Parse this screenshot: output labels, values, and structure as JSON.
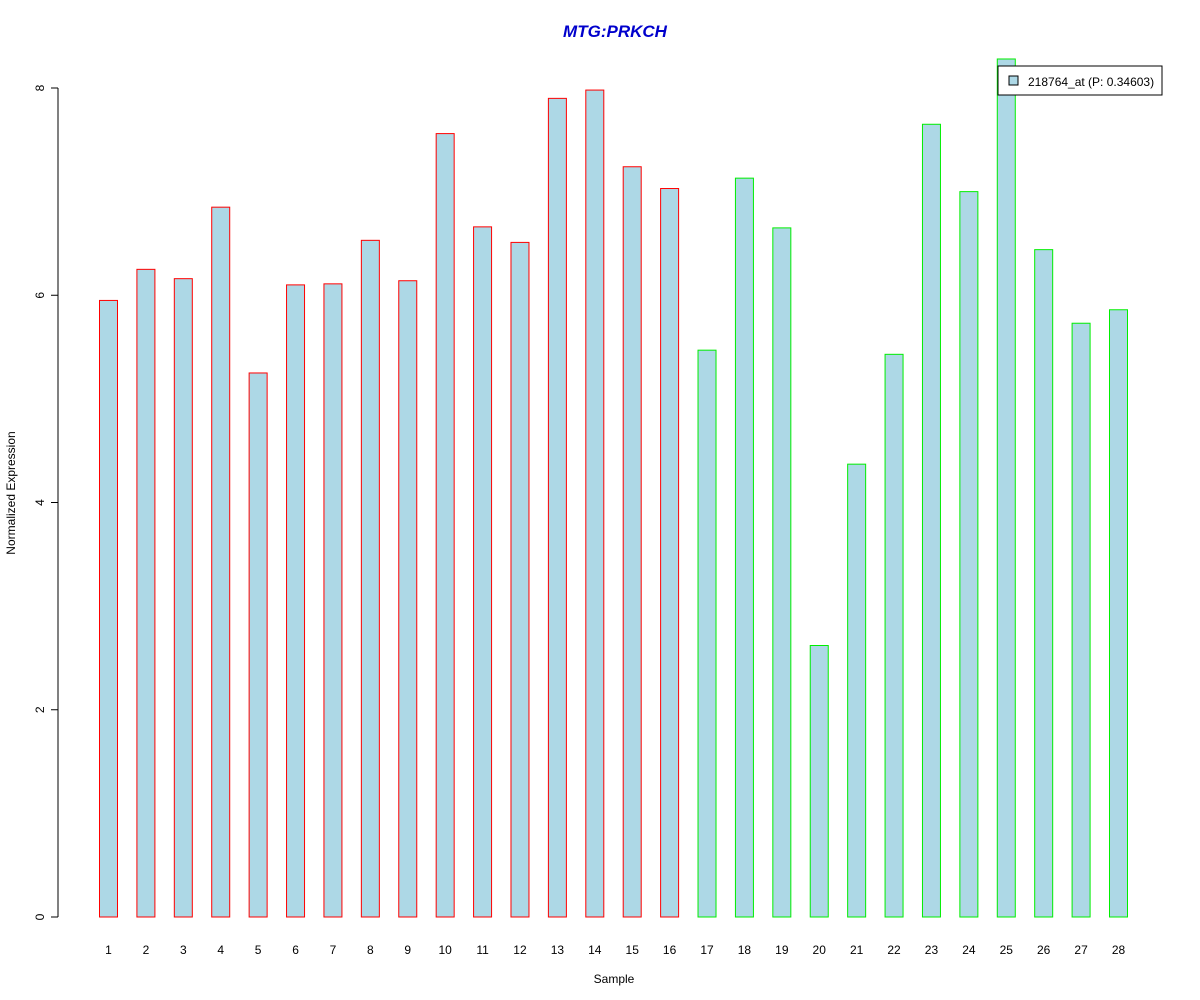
{
  "chart_data": {
    "type": "bar",
    "title": "MTG:PRKCH",
    "xlabel": "Sample",
    "ylabel": "Normalized Expression",
    "categories": [
      "1",
      "2",
      "3",
      "4",
      "5",
      "6",
      "7",
      "8",
      "9",
      "10",
      "11",
      "12",
      "13",
      "14",
      "15",
      "16",
      "17",
      "18",
      "19",
      "20",
      "21",
      "22",
      "23",
      "24",
      "25",
      "26",
      "27",
      "28"
    ],
    "series": [
      {
        "name": "218764_at (P: 0.34603)",
        "values": [
          5.95,
          6.25,
          6.16,
          6.85,
          5.25,
          6.1,
          6.11,
          6.53,
          6.14,
          7.56,
          6.66,
          6.51,
          7.9,
          7.98,
          7.24,
          7.03,
          5.47,
          7.13,
          6.65,
          2.62,
          4.37,
          5.43,
          7.65,
          7.0,
          8.28,
          6.44,
          5.73,
          5.86
        ]
      }
    ],
    "ylim": [
      0,
      8
    ],
    "yticks": [
      0,
      2,
      4,
      6,
      8
    ],
    "legend": "top-right",
    "grid": false,
    "colors": {
      "title": "#0000cc",
      "bar_fill": "#add8e6",
      "group1_border": "#ff0000",
      "group2_border": "#00ee00"
    },
    "group1_count": 16
  }
}
